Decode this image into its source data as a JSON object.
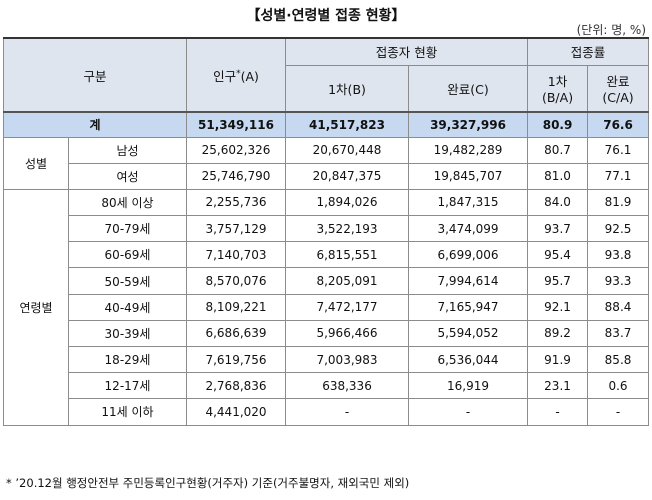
{
  "header": {
    "title": "【성별·연령별 접종 현황】",
    "unit": "(단위: 명, %)"
  },
  "table": {
    "columns": {
      "category": "구분",
      "population": "인구",
      "population_mark": "*",
      "population_suffix": "(A)",
      "vaccinated": "접종자 현황",
      "first": "1차(B)",
      "complete": "완료(C)",
      "rate": "접종률",
      "rate_first": [
        "1차",
        "(B/A)"
      ],
      "rate_complete": [
        "완료",
        "(C/A)"
      ]
    },
    "total": [
      "계",
      "51,349,116",
      "41,517,823",
      "39,327,996",
      "80.9",
      "76.6"
    ],
    "groups": [
      {
        "name": "성별",
        "rows": [
          [
            "남성",
            "25,602,326",
            "20,670,448",
            "19,482,289",
            "80.7",
            "76.1"
          ],
          [
            "여성",
            "25,746,790",
            "20,847,375",
            "19,845,707",
            "81.0",
            "77.1"
          ]
        ]
      },
      {
        "name": "연령별",
        "rows": [
          [
            "80세 이상",
            "2,255,736",
            "1,894,026",
            "1,847,315",
            "84.0",
            "81.9"
          ],
          [
            "70-79세",
            "3,757,129",
            "3,522,193",
            "3,474,099",
            "93.7",
            "92.5"
          ],
          [
            "60-69세",
            "7,140,703",
            "6,815,551",
            "6,699,006",
            "95.4",
            "93.8"
          ],
          [
            "50-59세",
            "8,570,076",
            "8,205,091",
            "7,994,614",
            "95.7",
            "93.3"
          ],
          [
            "40-49세",
            "8,109,221",
            "7,472,177",
            "7,165,947",
            "92.1",
            "88.4"
          ],
          [
            "30-39세",
            "6,686,639",
            "5,966,466",
            "5,594,052",
            "89.2",
            "83.7"
          ],
          [
            "18-29세",
            "7,619,756",
            "7,003,983",
            "6,536,044",
            "91.9",
            "85.8"
          ],
          [
            "12-17세",
            "2,768,836",
            "638,336",
            "16,919",
            "23.1",
            "0.6"
          ],
          [
            "11세 이하",
            "4,441,020",
            "-",
            "-",
            "-",
            "-"
          ]
        ]
      }
    ]
  },
  "footnote": "* ’20.12월 행정안전부 주민등록인구현황(거주자) 기준(거주불명자, 재외국민 제외)"
}
